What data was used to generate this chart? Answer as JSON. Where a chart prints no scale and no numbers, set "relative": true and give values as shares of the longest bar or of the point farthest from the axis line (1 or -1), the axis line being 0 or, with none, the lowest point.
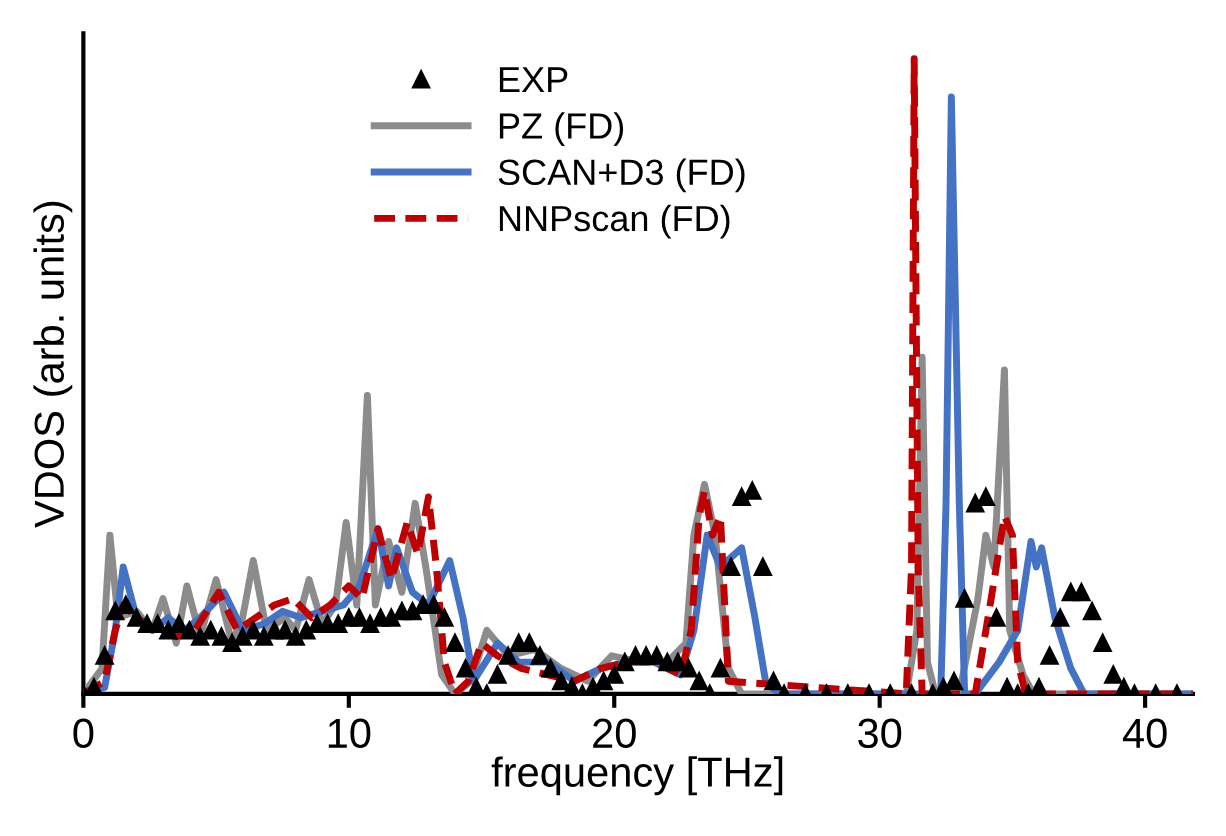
{
  "chart_data": {
    "type": "line",
    "relative": true,
    "xlabel": "frequency [THz]",
    "ylabel": "VDOS (arb. units)",
    "xlim": [
      0,
      41.8
    ],
    "xticks": [
      0,
      10,
      20,
      30,
      40
    ],
    "grid": false,
    "legend": "top",
    "series": [
      {
        "name": "EXP",
        "type": "scatter",
        "marker": "triangle",
        "color": "#000000",
        "x": [
          0,
          0.4,
          0.8,
          1.2,
          1.6,
          2.0,
          2.4,
          2.8,
          3.2,
          3.6,
          4.0,
          4.4,
          4.8,
          5.2,
          5.6,
          6.0,
          6.4,
          6.8,
          7.2,
          7.6,
          8.0,
          8.4,
          8.8,
          9.2,
          9.6,
          10.0,
          10.4,
          10.8,
          11.2,
          11.6,
          12.0,
          12.4,
          12.8,
          13.2,
          13.6,
          14.0,
          14.4,
          14.8,
          15.2,
          15.6,
          16.0,
          16.4,
          16.8,
          17.2,
          17.6,
          18.0,
          18.4,
          18.8,
          19.2,
          19.6,
          20.0,
          20.4,
          20.8,
          21.2,
          21.6,
          22.0,
          22.4,
          22.8,
          23.2,
          23.6,
          24.0,
          24.4,
          24.8,
          25.2,
          25.6,
          26.0,
          26.4,
          27.2,
          28.0,
          28.8,
          29.6,
          30.4,
          31.2,
          32.0,
          32.4,
          32.8,
          33.2,
          33.6,
          34.0,
          34.4,
          34.8,
          35.2,
          35.6,
          36.0,
          36.4,
          36.8,
          37.2,
          37.6,
          38.0,
          38.4,
          38.8,
          39.2,
          39.6,
          40.4,
          41.2
        ],
        "values": [
          0,
          0.01,
          0.06,
          0.13,
          0.14,
          0.12,
          0.11,
          0.11,
          0.1,
          0.11,
          0.1,
          0.09,
          0.1,
          0.09,
          0.08,
          0.09,
          0.1,
          0.09,
          0.1,
          0.1,
          0.09,
          0.1,
          0.11,
          0.11,
          0.11,
          0.12,
          0.12,
          0.11,
          0.12,
          0.12,
          0.13,
          0.13,
          0.14,
          0.14,
          0.12,
          0.08,
          0.04,
          0.01,
          0,
          0.03,
          0.06,
          0.08,
          0.08,
          0.06,
          0.04,
          0.02,
          0.01,
          0,
          0.01,
          0.02,
          0.03,
          0.05,
          0.06,
          0.06,
          0.06,
          0.05,
          0.05,
          0.04,
          0.02,
          0,
          0.04,
          0.2,
          0.31,
          0.32,
          0.2,
          0.02,
          0,
          0,
          0,
          0,
          0,
          0,
          0,
          0,
          0.01,
          0.02,
          0.15,
          0.3,
          0.31,
          0.12,
          0.01,
          0,
          0,
          0.01,
          0.06,
          0.12,
          0.16,
          0.16,
          0.13,
          0.08,
          0.03,
          0.01,
          0,
          0,
          0
        ]
      },
      {
        "name": "PZ (FD)",
        "color": "#8c8c8c",
        "line_style": "solid",
        "x": [
          0,
          0.7,
          1.0,
          1.3,
          2.0,
          2.6,
          3.0,
          3.5,
          3.9,
          4.4,
          5.0,
          5.6,
          6.0,
          6.4,
          6.9,
          7.6,
          8.0,
          8.5,
          9.0,
          9.5,
          9.9,
          10.3,
          10.7,
          11.0,
          11.5,
          12.0,
          12.5,
          12.9,
          13.5,
          14.0,
          14.6,
          15.2,
          16.0,
          17.0,
          18.0,
          19.0,
          19.9,
          21.0,
          22.0,
          22.7,
          23.0,
          23.4,
          23.8,
          24.3,
          24.8,
          31.0,
          31.4,
          31.6,
          31.8,
          32.1,
          33.0,
          33.7,
          34.0,
          34.3,
          34.7,
          34.9,
          35.4,
          35.8,
          41.8
        ],
        "values": [
          0,
          0.04,
          0.25,
          0.12,
          0.13,
          0.1,
          0.15,
          0.08,
          0.17,
          0.09,
          0.18,
          0.08,
          0.12,
          0.21,
          0.1,
          0.12,
          0.1,
          0.18,
          0.11,
          0.14,
          0.27,
          0.14,
          0.47,
          0.14,
          0.24,
          0.16,
          0.3,
          0.2,
          0.03,
          0,
          0.02,
          0.1,
          0.06,
          0.07,
          0.04,
          0.02,
          0.06,
          0.05,
          0.05,
          0.08,
          0.25,
          0.33,
          0.25,
          0.04,
          0,
          0,
          0.1,
          0.53,
          0.05,
          0,
          0,
          0.15,
          0.25,
          0.2,
          0.51,
          0.1,
          0.03,
          0,
          0
        ]
      },
      {
        "name": "SCAN+D3 (FD)",
        "color": "#4472c4",
        "line_style": "solid",
        "x": [
          0,
          0.8,
          1.2,
          1.5,
          2.0,
          2.6,
          3.2,
          3.8,
          4.4,
          5.3,
          6.0,
          6.8,
          7.5,
          8.2,
          9.0,
          9.8,
          10.4,
          11.1,
          11.5,
          11.8,
          12.4,
          13.0,
          13.8,
          14.3,
          14.7,
          15.6,
          16.4,
          17.5,
          18.5,
          19.5,
          20.5,
          21.5,
          22.5,
          23.0,
          23.5,
          24.0,
          24.8,
          25.3,
          25.7,
          26.2,
          32.3,
          32.5,
          32.7,
          33.0,
          33.2,
          33.6,
          34.5,
          35.2,
          35.7,
          35.9,
          36.1,
          36.6,
          37.2,
          37.7,
          41.8
        ],
        "values": [
          0,
          0.01,
          0.1,
          0.2,
          0.12,
          0.1,
          0.12,
          0.1,
          0.12,
          0.16,
          0.1,
          0.11,
          0.13,
          0.12,
          0.13,
          0.14,
          0.17,
          0.26,
          0.17,
          0.23,
          0.16,
          0.14,
          0.21,
          0.12,
          0.02,
          0.08,
          0.05,
          0.05,
          0.02,
          0.04,
          0.05,
          0.05,
          0.03,
          0.1,
          0.25,
          0.2,
          0.23,
          0.12,
          0.02,
          0,
          0,
          0.3,
          0.94,
          0.3,
          0,
          0,
          0.05,
          0.1,
          0.24,
          0.2,
          0.23,
          0.12,
          0.04,
          0,
          0
        ]
      },
      {
        "name": "NNPscan (FD)",
        "color": "#c00000",
        "line_style": "dashed",
        "x": [
          0,
          0.8,
          1.2,
          1.5,
          2.0,
          2.8,
          3.5,
          4.2,
          5.1,
          5.8,
          6.5,
          7.2,
          7.9,
          8.6,
          9.3,
          10.0,
          10.5,
          11.1,
          11.6,
          12.2,
          12.6,
          13.0,
          13.3,
          13.6,
          14.0,
          14.5,
          15.0,
          15.6,
          16.5,
          17.5,
          18.5,
          19.5,
          20.5,
          21.5,
          22.5,
          22.9,
          23.2,
          23.4,
          23.7,
          24.0,
          24.3,
          31.0,
          31.2,
          31.3,
          31.45,
          31.6,
          33.6,
          34.2,
          34.7,
          35.0,
          35.2,
          35.5,
          41.8
        ],
        "values": [
          0,
          0.02,
          0.1,
          0.14,
          0.12,
          0.1,
          0.09,
          0.1,
          0.16,
          0.1,
          0.12,
          0.14,
          0.15,
          0.12,
          0.14,
          0.17,
          0.15,
          0.26,
          0.18,
          0.27,
          0.22,
          0.31,
          0.2,
          0.05,
          0,
          0.02,
          0.08,
          0.06,
          0.04,
          0.03,
          0.02,
          0.04,
          0.05,
          0.05,
          0.03,
          0.1,
          0.28,
          0.32,
          0.25,
          0.28,
          0.02,
          0,
          0.2,
          1.0,
          0.2,
          0,
          0,
          0.15,
          0.28,
          0.25,
          0.05,
          0,
          0
        ]
      }
    ]
  }
}
